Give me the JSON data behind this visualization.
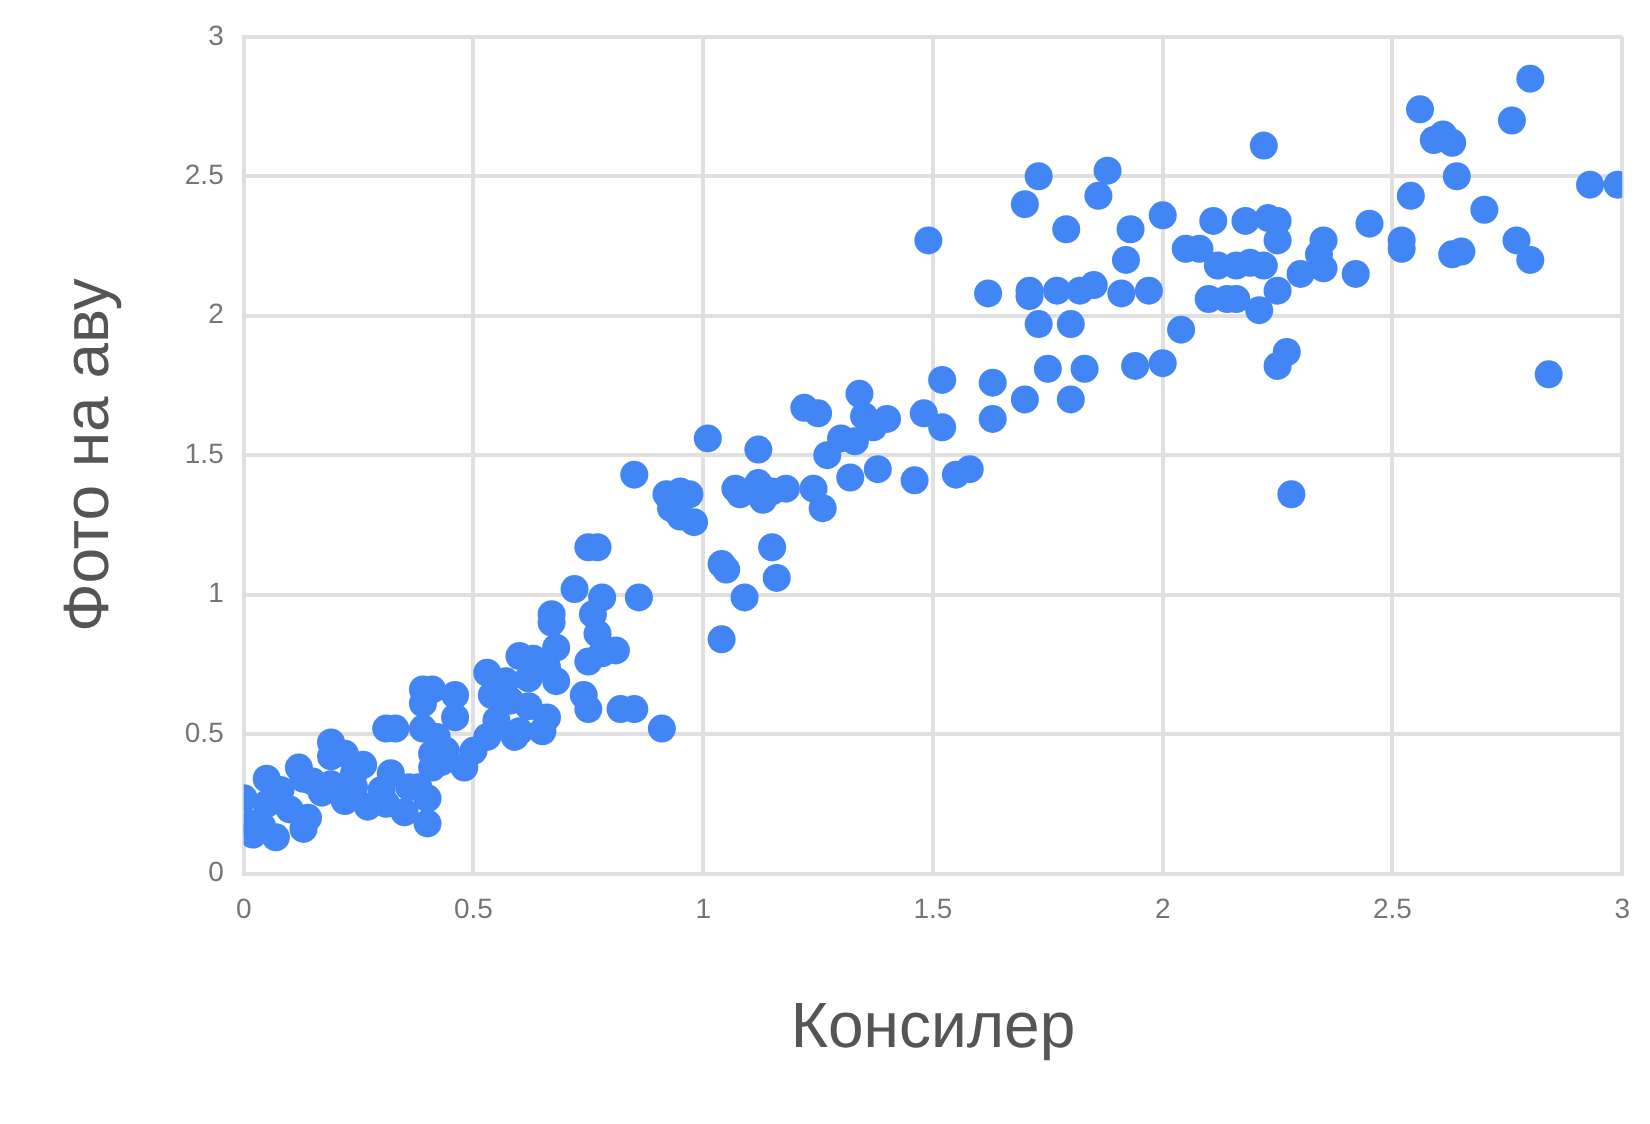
{
  "chart_data": {
    "type": "scatter",
    "xlabel": "Консилер",
    "ylabel": "Фото на аву",
    "xlim": [
      0,
      3
    ],
    "ylim": [
      0,
      3
    ],
    "xticks": [
      0,
      0.5,
      1,
      1.5,
      2,
      2.5,
      3
    ],
    "yticks": [
      0,
      0.5,
      1,
      1.5,
      2,
      2.5,
      3
    ],
    "grid": true,
    "marker": "circle",
    "legend": false,
    "series": [
      {
        "color": "#4285f4",
        "x": [
          2.8,
          2.76,
          2.56,
          2.59,
          2.61,
          2.63,
          2.64,
          2.7,
          2.77,
          2.8,
          2.84,
          2.93,
          2.99,
          2.22,
          2.54,
          2.45,
          2.52,
          2.52,
          2.63,
          2.65,
          2.35,
          2.34,
          2.35,
          2.3,
          2.42,
          2.28,
          2.27,
          2.25,
          2.0,
          2.08,
          2.05,
          2.11,
          2.18,
          2.23,
          2.25,
          2.12,
          2.16,
          2.19,
          2.22,
          2.25,
          2.1,
          2.14,
          2.16,
          2.21,
          2.25,
          2.04,
          2.0,
          1.97,
          1.93,
          1.92,
          1.91,
          1.88,
          1.86,
          1.73,
          1.7,
          1.79,
          1.71,
          1.71,
          1.77,
          1.82,
          1.85,
          1.62,
          1.49,
          1.73,
          1.8,
          1.75,
          1.83,
          1.94,
          1.7,
          1.8,
          1.63,
          1.52,
          1.63,
          1.48,
          1.52,
          1.55,
          1.58,
          1.22,
          1.25,
          1.34,
          1.35,
          1.37,
          1.4,
          1.3,
          1.33,
          1.27,
          1.32,
          1.38,
          1.46,
          1.24,
          1.26,
          1.12,
          1.01,
          1.07,
          1.08,
          1.12,
          1.13,
          1.15,
          1.18,
          1.15,
          1.16,
          1.04,
          1.05,
          1.09,
          1.04,
          0.85,
          0.92,
          0.95,
          0.97,
          0.93,
          0.95,
          0.98,
          0.75,
          0.77,
          0.72,
          0.78,
          0.86,
          0.76,
          0.67,
          0.67,
          0.77,
          0.78,
          0.81,
          0.75,
          0.68,
          0.63,
          0.6,
          0.66,
          0.53,
          0.57,
          0.62,
          0.68,
          0.54,
          0.58,
          0.62,
          0.74,
          0.75,
          0.82,
          0.85,
          0.91,
          0.66,
          0.6,
          0.65,
          0.59,
          0.53,
          0.55,
          0.5,
          0.48,
          0.41,
          0.39,
          0.46,
          0.39,
          0.46,
          0.31,
          0.33,
          0.39,
          0.42,
          0.19,
          0.41,
          0.44,
          0.41,
          0.43,
          0.19,
          0.22,
          0.26,
          0.32,
          0.36,
          0.38,
          0.4,
          0.4,
          0.35,
          0.31,
          0.27,
          0.22,
          0.24,
          0.15,
          0.12,
          0.13,
          0.08,
          0.1,
          0.14,
          0.13,
          0.05,
          0.05,
          0.02,
          0.02,
          0.04,
          0.07,
          0.0,
          0.17,
          0.19,
          0.24,
          0.3
        ],
        "values": [
          2.85,
          2.7,
          2.74,
          2.63,
          2.65,
          2.62,
          2.5,
          2.38,
          2.27,
          2.2,
          1.79,
          2.47,
          2.47,
          2.61,
          2.43,
          2.33,
          2.27,
          2.24,
          2.22,
          2.23,
          2.27,
          2.22,
          2.17,
          2.15,
          2.15,
          1.36,
          1.87,
          1.82,
          2.36,
          2.24,
          2.24,
          2.34,
          2.34,
          2.35,
          2.34,
          2.18,
          2.18,
          2.19,
          2.18,
          2.27,
          2.06,
          2.06,
          2.06,
          2.02,
          2.09,
          1.95,
          1.83,
          2.09,
          2.31,
          2.2,
          2.08,
          2.52,
          2.43,
          2.5,
          2.4,
          2.31,
          2.09,
          2.07,
          2.09,
          2.09,
          2.11,
          2.08,
          2.27,
          1.97,
          1.97,
          1.81,
          1.81,
          1.82,
          1.7,
          1.7,
          1.76,
          1.77,
          1.63,
          1.65,
          1.6,
          1.43,
          1.45,
          1.67,
          1.65,
          1.72,
          1.64,
          1.6,
          1.63,
          1.56,
          1.55,
          1.5,
          1.42,
          1.45,
          1.41,
          1.38,
          1.31,
          1.52,
          1.56,
          1.38,
          1.36,
          1.4,
          1.34,
          1.37,
          1.38,
          1.17,
          1.06,
          1.11,
          1.09,
          0.99,
          0.84,
          1.43,
          1.36,
          1.37,
          1.36,
          1.31,
          1.28,
          1.26,
          1.17,
          1.17,
          1.02,
          0.99,
          0.99,
          0.93,
          0.93,
          0.9,
          0.86,
          0.79,
          0.8,
          0.76,
          0.81,
          0.77,
          0.78,
          0.74,
          0.72,
          0.69,
          0.7,
          0.69,
          0.64,
          0.62,
          0.6,
          0.64,
          0.59,
          0.59,
          0.59,
          0.52,
          0.56,
          0.51,
          0.51,
          0.49,
          0.49,
          0.55,
          0.44,
          0.38,
          0.66,
          0.66,
          0.64,
          0.61,
          0.56,
          0.52,
          0.52,
          0.52,
          0.49,
          0.47,
          0.43,
          0.44,
          0.38,
          0.4,
          0.42,
          0.43,
          0.39,
          0.36,
          0.31,
          0.31,
          0.27,
          0.18,
          0.22,
          0.25,
          0.24,
          0.26,
          0.31,
          0.33,
          0.38,
          0.34,
          0.3,
          0.23,
          0.2,
          0.16,
          0.34,
          0.25,
          0.18,
          0.14,
          0.17,
          0.13,
          0.27,
          0.29,
          0.32,
          0.36,
          0.3
        ]
      }
    ]
  }
}
